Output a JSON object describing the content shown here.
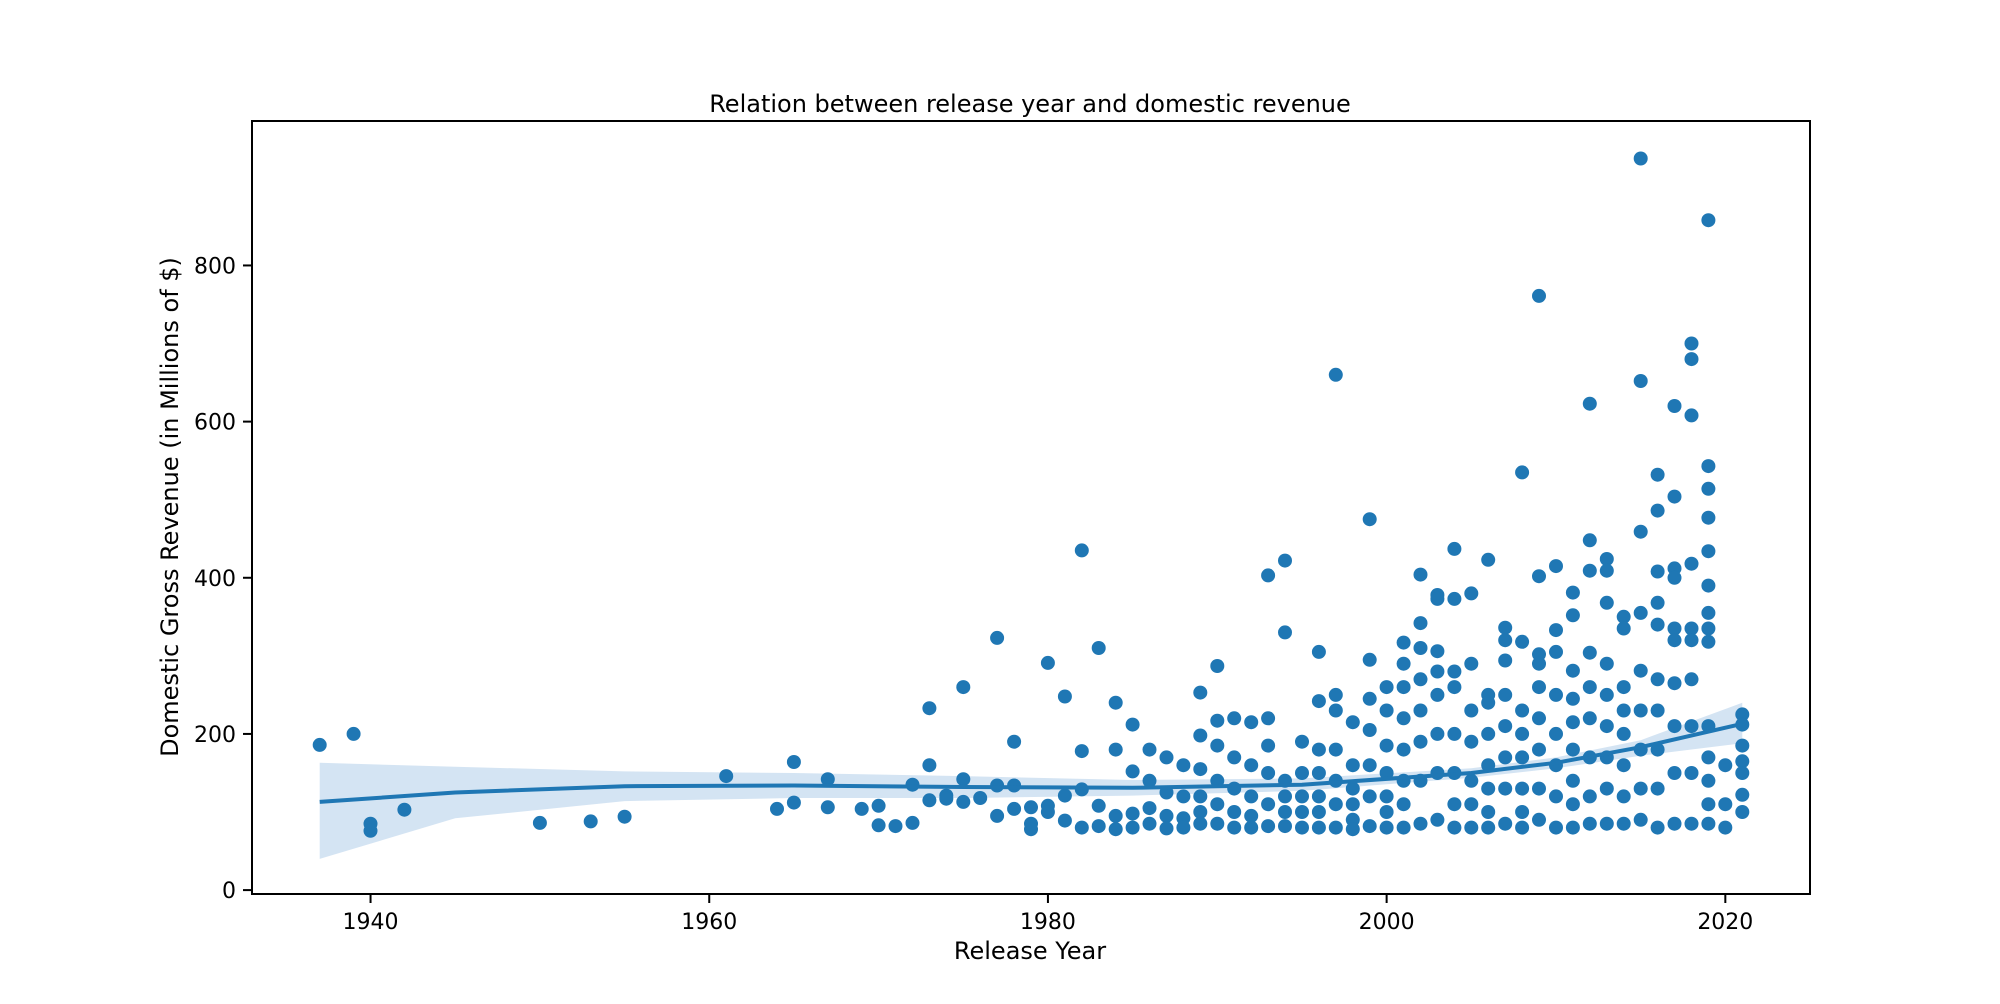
{
  "chart_data": {
    "type": "scatter",
    "title": "Relation between release year and domestic revenue",
    "xlabel": "Release Year",
    "ylabel": "Domestic Gross Revenue (in Millions of $)",
    "xlim": [
      1933,
      2025
    ],
    "ylim": [
      -5,
      985
    ],
    "xticks": [
      1940,
      1960,
      1980,
      2000,
      2020
    ],
    "yticks": [
      0,
      200,
      400,
      600,
      800
    ],
    "grid": false,
    "legend": "none",
    "colors": {
      "points": "#1f77b4",
      "trend_line": "#1f77b4",
      "confidence_band": "#c6dbef",
      "axes": "#000000"
    },
    "series": [
      {
        "type": "scatter",
        "x": [
          1937,
          1939,
          1940,
          1940,
          1942,
          1950,
          1953,
          1955,
          1961,
          1964,
          1965,
          1965,
          1967,
          1967,
          1969,
          1970,
          1970,
          1971,
          1972,
          1972,
          1973,
          1973,
          1973,
          1974,
          1974,
          1975,
          1975,
          1975,
          1976,
          1977,
          1977,
          1977,
          1978,
          1978,
          1978,
          1979,
          1979,
          1979,
          1980,
          1980,
          1980,
          1981,
          1981,
          1981,
          1982,
          1982,
          1982,
          1982,
          1983,
          1983,
          1983,
          1984,
          1984,
          1984,
          1984,
          1985,
          1985,
          1985,
          1985,
          1986,
          1986,
          1986,
          1986,
          1987,
          1987,
          1987,
          1987,
          1988,
          1988,
          1988,
          1988,
          1989,
          1989,
          1989,
          1989,
          1989,
          1989,
          1990,
          1990,
          1990,
          1990,
          1990,
          1990,
          1991,
          1991,
          1991,
          1991,
          1991,
          1992,
          1992,
          1992,
          1992,
          1992,
          1993,
          1993,
          1993,
          1993,
          1993,
          1993,
          1994,
          1994,
          1994,
          1994,
          1994,
          1994,
          1995,
          1995,
          1995,
          1995,
          1995,
          1996,
          1996,
          1996,
          1996,
          1996,
          1996,
          1996,
          1997,
          1997,
          1997,
          1997,
          1997,
          1997,
          1997,
          1998,
          1998,
          1998,
          1998,
          1998,
          1998,
          1999,
          1999,
          1999,
          1999,
          1999,
          1999,
          1999,
          2000,
          2000,
          2000,
          2000,
          2000,
          2000,
          2000,
          2001,
          2001,
          2001,
          2001,
          2001,
          2001,
          2001,
          2001,
          2002,
          2002,
          2002,
          2002,
          2002,
          2002,
          2002,
          2002,
          2003,
          2003,
          2003,
          2003,
          2003,
          2003,
          2003,
          2003,
          2004,
          2004,
          2004,
          2004,
          2004,
          2004,
          2004,
          2004,
          2005,
          2005,
          2005,
          2005,
          2005,
          2005,
          2005,
          2006,
          2006,
          2006,
          2006,
          2006,
          2006,
          2006,
          2006,
          2007,
          2007,
          2007,
          2007,
          2007,
          2007,
          2007,
          2007,
          2008,
          2008,
          2008,
          2008,
          2008,
          2008,
          2008,
          2008,
          2009,
          2009,
          2009,
          2009,
          2009,
          2009,
          2009,
          2009,
          2009,
          2010,
          2010,
          2010,
          2010,
          2010,
          2010,
          2010,
          2010,
          2011,
          2011,
          2011,
          2011,
          2011,
          2011,
          2011,
          2011,
          2011,
          2012,
          2012,
          2012,
          2012,
          2012,
          2012,
          2012,
          2012,
          2012,
          2013,
          2013,
          2013,
          2013,
          2013,
          2013,
          2013,
          2013,
          2013,
          2014,
          2014,
          2014,
          2014,
          2014,
          2014,
          2014,
          2014,
          2015,
          2015,
          2015,
          2015,
          2015,
          2015,
          2015,
          2015,
          2015,
          2016,
          2016,
          2016,
          2016,
          2016,
          2016,
          2016,
          2016,
          2016,
          2016,
          2017,
          2017,
          2017,
          2017,
          2017,
          2017,
          2017,
          2017,
          2017,
          2017,
          2018,
          2018,
          2018,
          2018,
          2018,
          2018,
          2018,
          2018,
          2018,
          2018,
          2019,
          2019,
          2019,
          2019,
          2019,
          2019,
          2019,
          2019,
          2019,
          2019,
          2019,
          2019,
          2019,
          2019,
          2020,
          2020,
          2020,
          2021,
          2021,
          2021,
          2021,
          2021,
          2021,
          2021
        ],
        "y": [
          186,
          200,
          85,
          76,
          103,
          86,
          88,
          94,
          146,
          104,
          164,
          112,
          142,
          106,
          104,
          108,
          83,
          82,
          135,
          86,
          233,
          160,
          115,
          121,
          117,
          260,
          142,
          113,
          118,
          323,
          134,
          95,
          190,
          134,
          104,
          106,
          85,
          78,
          291,
          108,
          100,
          248,
          121,
          89,
          435,
          178,
          129,
          80,
          310,
          108,
          82,
          240,
          180,
          95,
          78,
          212,
          152,
          98,
          80,
          180,
          140,
          105,
          85,
          170,
          125,
          95,
          79,
          160,
          120,
          92,
          80,
          253,
          198,
          155,
          120,
          100,
          85,
          287,
          217,
          185,
          140,
          110,
          85,
          220,
          170,
          130,
          100,
          80,
          215,
          160,
          120,
          95,
          80,
          403,
          220,
          185,
          150,
          110,
          82,
          422,
          330,
          140,
          120,
          100,
          82,
          190,
          150,
          120,
          100,
          80,
          305,
          242,
          180,
          150,
          120,
          100,
          80,
          660,
          250,
          230,
          180,
          140,
          110,
          80,
          215,
          160,
          130,
          110,
          90,
          78,
          475,
          295,
          245,
          205,
          160,
          120,
          82,
          260,
          230,
          185,
          150,
          120,
          100,
          80,
          317,
          290,
          260,
          220,
          180,
          140,
          110,
          80,
          404,
          342,
          310,
          270,
          230,
          190,
          140,
          85,
          378,
          373,
          306,
          280,
          250,
          200,
          150,
          90,
          437,
          373,
          280,
          260,
          200,
          150,
          110,
          80,
          380,
          290,
          230,
          190,
          140,
          110,
          80,
          423,
          250,
          240,
          200,
          160,
          130,
          100,
          80,
          336,
          320,
          294,
          250,
          210,
          170,
          130,
          85,
          535,
          318,
          230,
          200,
          170,
          130,
          100,
          80,
          761,
          402,
          302,
          290,
          260,
          220,
          180,
          130,
          90,
          415,
          333,
          305,
          250,
          200,
          160,
          120,
          80,
          381,
          352,
          281,
          245,
          215,
          180,
          140,
          110,
          80,
          623,
          448,
          409,
          304,
          260,
          220,
          170,
          120,
          85,
          424,
          409,
          368,
          290,
          250,
          210,
          170,
          130,
          85,
          350,
          335,
          260,
          230,
          200,
          160,
          120,
          85,
          937,
          652,
          459,
          355,
          281,
          230,
          180,
          130,
          90,
          532,
          486,
          408,
          368,
          340,
          270,
          230,
          180,
          130,
          80,
          620,
          504,
          412,
          400,
          335,
          320,
          265,
          210,
          150,
          85,
          700,
          680,
          608,
          418,
          335,
          320,
          270,
          210,
          150,
          85,
          858,
          543,
          514,
          477,
          434,
          390,
          355,
          335,
          318,
          210,
          170,
          140,
          110,
          85,
          160,
          110,
          80,
          225,
          212,
          185,
          165,
          150,
          122,
          100
        ]
      },
      {
        "type": "line",
        "x": [
          1937,
          1945,
          1955,
          1965,
          1975,
          1985,
          1995,
          2005,
          2010,
          2015,
          2021
        ],
        "y": [
          113,
          125,
          133,
          134,
          132,
          131,
          135,
          150,
          163,
          183,
          213
        ]
      },
      {
        "type": "area",
        "x": [
          1937,
          1945,
          1955,
          1965,
          1975,
          1985,
          1995,
          2005,
          2010,
          2015,
          2021
        ],
        "upper": [
          163,
          158,
          152,
          150,
          146,
          141,
          143,
          156,
          170,
          192,
          240
        ],
        "lower": [
          40,
          92,
          114,
          118,
          118,
          121,
          127,
          144,
          156,
          172,
          188
        ]
      }
    ]
  }
}
